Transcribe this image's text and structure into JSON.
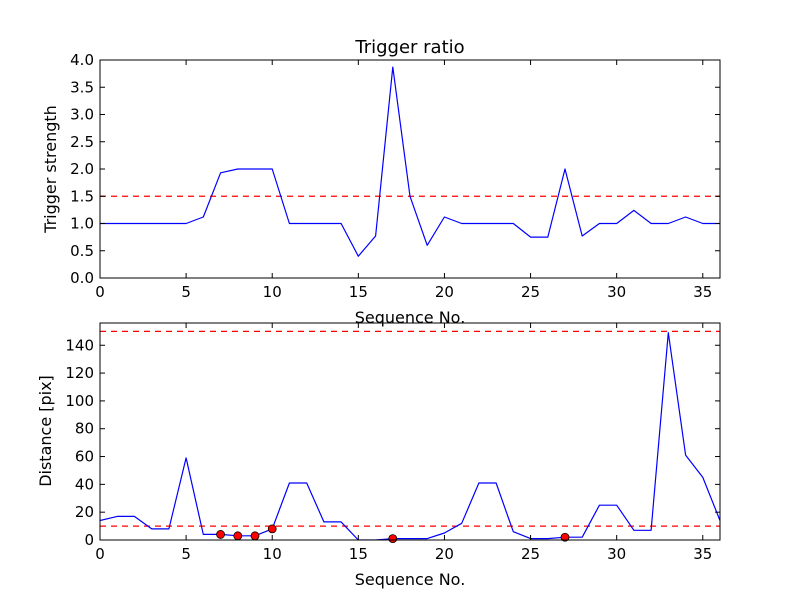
{
  "chart_data": [
    {
      "type": "line",
      "title": "Trigger ratio",
      "xlabel": "Sequence No.",
      "ylabel": "Trigger strength",
      "xlim": [
        0,
        36
      ],
      "ylim": [
        0,
        4.0
      ],
      "xticks": [
        "0",
        "5",
        "10",
        "15",
        "20",
        "25",
        "30",
        "35"
      ],
      "yticks": [
        "0.0",
        "0.5",
        "1.0",
        "1.5",
        "2.0",
        "2.5",
        "3.0",
        "3.5",
        "4.0"
      ],
      "grid": false,
      "colors": {
        "line": "#0000ff",
        "threshold": "#ff0000"
      },
      "thresholds": [
        1.5
      ],
      "series": [
        {
          "x": [
            0,
            1,
            2,
            3,
            4,
            5,
            6,
            7,
            8,
            9,
            10,
            11,
            12,
            13,
            14,
            15,
            16,
            17,
            18,
            19,
            20,
            21,
            22,
            23,
            24,
            25,
            26,
            27,
            28,
            29,
            30,
            31,
            32,
            33,
            34,
            35,
            36
          ],
          "values": [
            1.0,
            1.0,
            1.0,
            1.0,
            1.0,
            1.0,
            1.12,
            1.93,
            2.0,
            2.0,
            2.0,
            1.0,
            1.0,
            1.0,
            1.0,
            0.4,
            0.77,
            3.87,
            1.5,
            0.6,
            1.12,
            1.0,
            1.0,
            1.0,
            1.0,
            0.75,
            0.75,
            2.0,
            0.77,
            1.0,
            1.0,
            1.24,
            1.0,
            1.0,
            1.12,
            1.0,
            1.0
          ]
        }
      ]
    },
    {
      "type": "line",
      "title": "",
      "xlabel": "Sequence No.",
      "ylabel": "Distance [pix]",
      "xlim": [
        0,
        36
      ],
      "ylim": [
        0,
        156
      ],
      "xticks": [
        "0",
        "5",
        "10",
        "15",
        "20",
        "25",
        "30",
        "35"
      ],
      "yticks": [
        "0",
        "20",
        "40",
        "60",
        "80",
        "100",
        "120",
        "140"
      ],
      "grid": false,
      "colors": {
        "line": "#0000ff",
        "threshold": "#ff0000",
        "marker": "#ff0000"
      },
      "thresholds": [
        10,
        150
      ],
      "series": [
        {
          "x": [
            0,
            1,
            2,
            3,
            4,
            5,
            6,
            7,
            8,
            9,
            10,
            11,
            12,
            13,
            14,
            15,
            16,
            17,
            18,
            19,
            20,
            21,
            22,
            23,
            24,
            25,
            26,
            27,
            28,
            29,
            30,
            31,
            32,
            33,
            34,
            35,
            36
          ],
          "values": [
            14,
            17,
            17,
            8,
            8,
            59,
            4,
            4,
            3,
            3,
            8,
            41,
            41,
            13,
            13,
            0,
            0,
            1,
            1,
            1,
            5,
            12,
            41,
            41,
            6,
            1,
            1,
            2,
            2,
            25,
            25,
            7,
            7,
            149,
            61,
            45,
            14
          ]
        }
      ],
      "markers": {
        "x": [
          7,
          8,
          9,
          10,
          17,
          27
        ],
        "y": [
          4,
          3,
          3,
          8,
          1,
          2
        ]
      }
    }
  ]
}
